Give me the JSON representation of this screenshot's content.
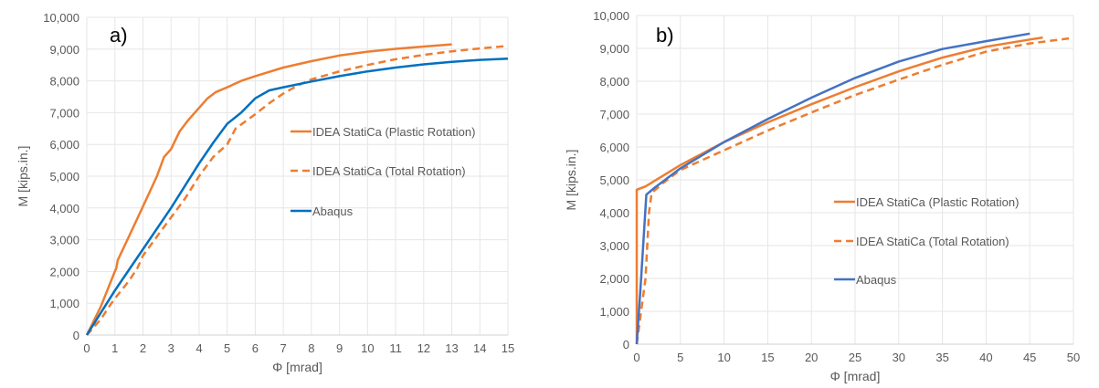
{
  "colors": {
    "orange": "#ED7D31",
    "blue_a": "#0070C0",
    "blue_b": "#4472C4",
    "grid": "#E6E6E6",
    "text": "#595959"
  },
  "chart_data": [
    {
      "type": "line",
      "panel_label": "a)",
      "xlabel": "Φ [mrad]",
      "ylabel": "M [kips.in.]",
      "xlim": [
        0,
        15
      ],
      "ylim": [
        0,
        10000
      ],
      "xticks": [
        0,
        1,
        2,
        3,
        4,
        5,
        6,
        7,
        8,
        9,
        10,
        11,
        12,
        13,
        14,
        15
      ],
      "yticks": [
        0,
        1000,
        2000,
        3000,
        4000,
        5000,
        6000,
        7000,
        8000,
        9000,
        10000
      ],
      "ytick_labels": [
        "0",
        "1,000",
        "2,000",
        "3,000",
        "4,000",
        "5,000",
        "6,000",
        "7,000",
        "8,000",
        "9,000",
        "10,000"
      ],
      "grid": true,
      "legend_position": "center-right",
      "series": [
        {
          "name": "IDEA StatiCa (Plastic Rotation)",
          "style": "solid",
          "color": "orange",
          "points": [
            [
              0,
              0
            ],
            [
              0.5,
              900
            ],
            [
              1,
              2000
            ],
            [
              1.05,
              2100
            ],
            [
              1.1,
              2350
            ],
            [
              1.5,
              3100
            ],
            [
              2,
              4050
            ],
            [
              2.5,
              5000
            ],
            [
              2.75,
              5600
            ],
            [
              3,
              5850
            ],
            [
              3.3,
              6400
            ],
            [
              3.6,
              6750
            ],
            [
              4,
              7150
            ],
            [
              4.3,
              7450
            ],
            [
              4.6,
              7650
            ],
            [
              5,
              7800
            ],
            [
              5.5,
              8000
            ],
            [
              6,
              8150
            ],
            [
              7,
              8420
            ],
            [
              8,
              8620
            ],
            [
              9,
              8800
            ],
            [
              10,
              8920
            ],
            [
              11,
              9010
            ],
            [
              12,
              9080
            ],
            [
              13,
              9150
            ]
          ]
        },
        {
          "name": "IDEA StatiCa (Total Rotation)",
          "style": "dashed",
          "color": "orange",
          "points": [
            [
              0,
              0
            ],
            [
              0.5,
              500
            ],
            [
              0.8,
              900
            ],
            [
              1,
              1150
            ],
            [
              1.5,
              1700
            ],
            [
              1.8,
              2100
            ],
            [
              2,
              2500
            ],
            [
              2.5,
              3100
            ],
            [
              3,
              3700
            ],
            [
              3.5,
              4300
            ],
            [
              4,
              5000
            ],
            [
              4.5,
              5600
            ],
            [
              5,
              6000
            ],
            [
              5.3,
              6500
            ],
            [
              6,
              6950
            ],
            [
              6.5,
              7300
            ],
            [
              7,
              7600
            ],
            [
              7.5,
              7850
            ],
            [
              8,
              8050
            ],
            [
              9,
              8300
            ],
            [
              10,
              8500
            ],
            [
              11,
              8680
            ],
            [
              12,
              8820
            ],
            [
              13,
              8930
            ],
            [
              14,
              9020
            ],
            [
              15,
              9100
            ]
          ]
        },
        {
          "name": "Abaqus",
          "style": "solid",
          "color": "blue_a",
          "points": [
            [
              0,
              0
            ],
            [
              1,
              1400
            ],
            [
              2,
              2700
            ],
            [
              3,
              4000
            ],
            [
              4,
              5400
            ],
            [
              4.5,
              6050
            ],
            [
              5,
              6650
            ],
            [
              5.5,
              7000
            ],
            [
              6,
              7450
            ],
            [
              6.5,
              7700
            ],
            [
              7,
              7800
            ],
            [
              8,
              7980
            ],
            [
              9,
              8150
            ],
            [
              10,
              8300
            ],
            [
              11,
              8420
            ],
            [
              12,
              8520
            ],
            [
              13,
              8600
            ],
            [
              14,
              8660
            ],
            [
              15,
              8700
            ]
          ]
        }
      ]
    },
    {
      "type": "line",
      "panel_label": "b)",
      "xlabel": "Φ [mrad]",
      "ylabel": "M [kips.in.]",
      "xlim": [
        0,
        50
      ],
      "ylim": [
        0,
        10000
      ],
      "xticks": [
        0,
        5,
        10,
        15,
        20,
        25,
        30,
        35,
        40,
        45,
        50
      ],
      "yticks": [
        0,
        1000,
        2000,
        3000,
        4000,
        5000,
        6000,
        7000,
        8000,
        9000,
        10000
      ],
      "ytick_labels": [
        "0",
        "1,000",
        "2,000",
        "3,000",
        "4,000",
        "5,000",
        "6,000",
        "7,000",
        "8,000",
        "9,000",
        "10,000"
      ],
      "grid": true,
      "legend_position": "lower-right",
      "series": [
        {
          "name": "IDEA StatiCa (Plastic Rotation)",
          "style": "solid",
          "color": "orange",
          "points": [
            [
              0,
              0
            ],
            [
              0,
              4700
            ],
            [
              1,
              4800
            ],
            [
              5,
              5450
            ],
            [
              10,
              6150
            ],
            [
              15,
              6750
            ],
            [
              20,
              7300
            ],
            [
              25,
              7820
            ],
            [
              30,
              8300
            ],
            [
              35,
              8720
            ],
            [
              40,
              9050
            ],
            [
              45,
              9270
            ],
            [
              46.5,
              9330
            ]
          ]
        },
        {
          "name": "IDEA StatiCa (Total Rotation)",
          "style": "dashed",
          "color": "orange",
          "points": [
            [
              0,
              0
            ],
            [
              0.5,
              1000
            ],
            [
              1,
              2000
            ],
            [
              1.2,
              3000
            ],
            [
              1.4,
              4000
            ],
            [
              1.7,
              4600
            ],
            [
              3,
              4900
            ],
            [
              5,
              5300
            ],
            [
              10,
              5900
            ],
            [
              15,
              6500
            ],
            [
              20,
              7050
            ],
            [
              25,
              7580
            ],
            [
              30,
              8050
            ],
            [
              35,
              8500
            ],
            [
              40,
              8900
            ],
            [
              45,
              9150
            ],
            [
              50,
              9320
            ]
          ]
        },
        {
          "name": "Abaqus",
          "style": "solid",
          "color": "blue_b",
          "points": [
            [
              0,
              0
            ],
            [
              0.5,
              2000
            ],
            [
              1.1,
              4550
            ],
            [
              2,
              4750
            ],
            [
              5,
              5350
            ],
            [
              10,
              6150
            ],
            [
              15,
              6850
            ],
            [
              20,
              7500
            ],
            [
              25,
              8100
            ],
            [
              30,
              8600
            ],
            [
              35,
              8980
            ],
            [
              40,
              9220
            ],
            [
              45,
              9450
            ]
          ]
        }
      ]
    }
  ]
}
